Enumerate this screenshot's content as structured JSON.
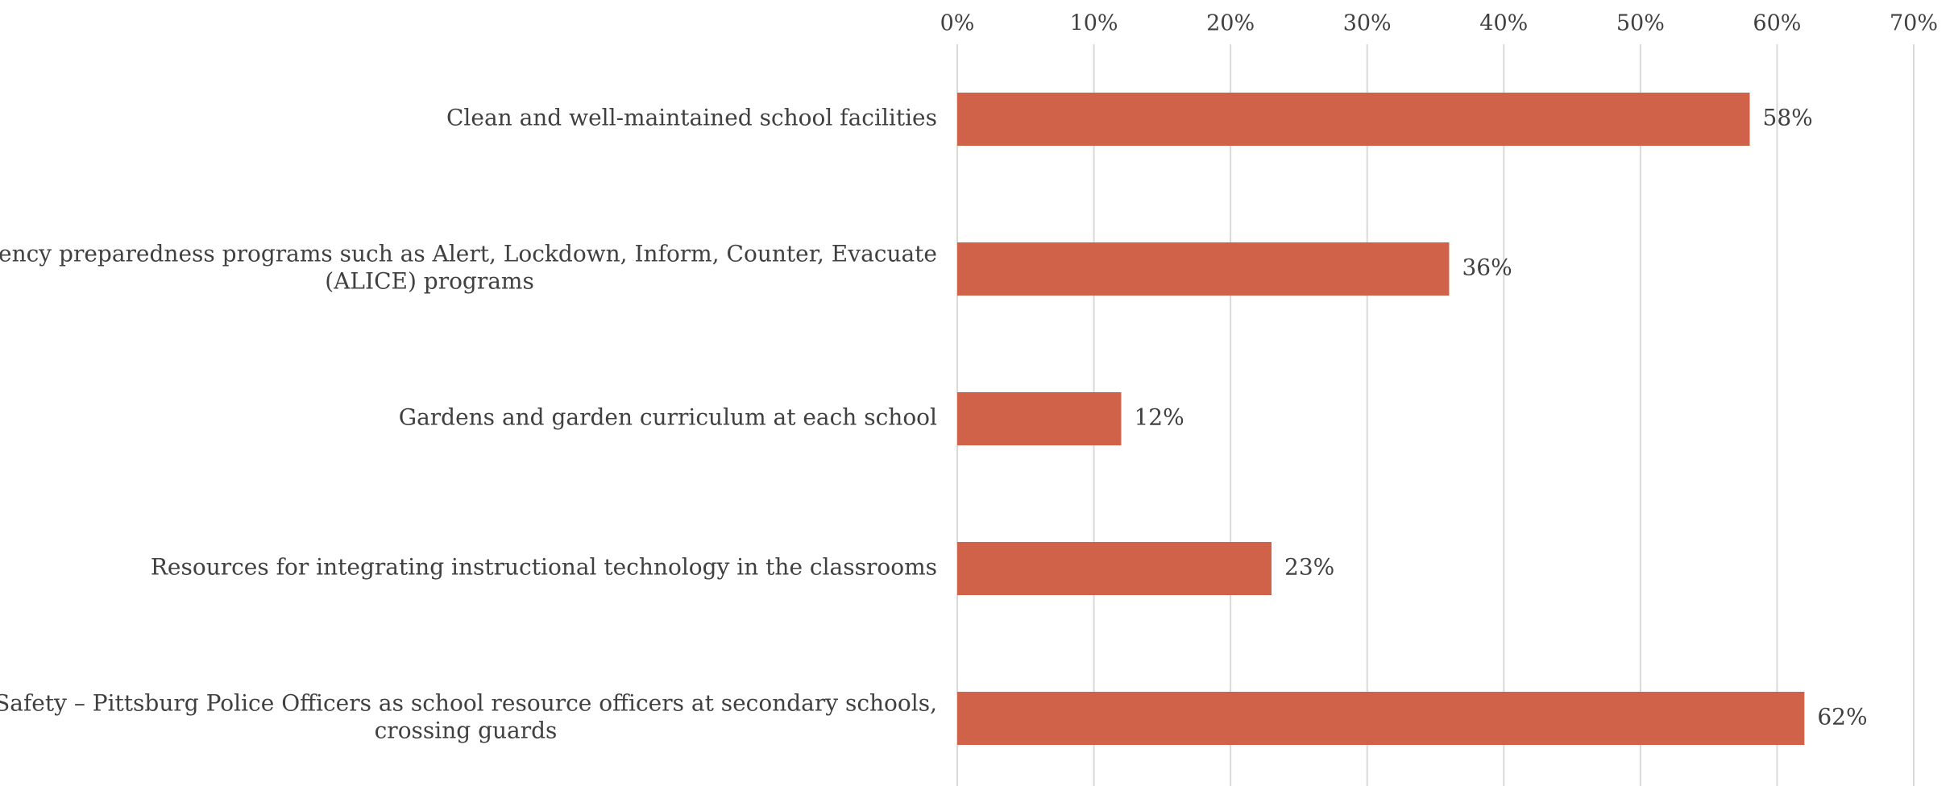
{
  "chart_data": {
    "type": "bar",
    "orientation": "horizontal",
    "categories": [
      [
        "Clean and well-maintained school facilities"
      ],
      [
        "Emergency preparedness programs such as Alert, Lockdown, Inform, Counter, Evacuate",
        "(ALICE) programs"
      ],
      [
        "Gardens and garden curriculum at each school"
      ],
      [
        "Resources for integrating instructional technology in the classrooms"
      ],
      [
        "Safety – Pittsburg Police Officers as school resource officers at secondary schools,",
        "crossing guards"
      ]
    ],
    "values": [
      58,
      36,
      12,
      23,
      62
    ],
    "data_labels": [
      "58%",
      "36%",
      "12%",
      "23%",
      "62%"
    ],
    "xlim": [
      0,
      70
    ],
    "ticks": [
      0,
      10,
      20,
      30,
      40,
      50,
      60,
      70
    ],
    "tick_labels": [
      "0%",
      "10%",
      "20%",
      "30%",
      "40%",
      "50%",
      "60%",
      "70%"
    ],
    "x_axis_position": "top",
    "grid": true,
    "legend": "none",
    "colors": {
      "bar": "#D0624A",
      "grid": "#D9D9D9",
      "text": "#404040"
    }
  }
}
